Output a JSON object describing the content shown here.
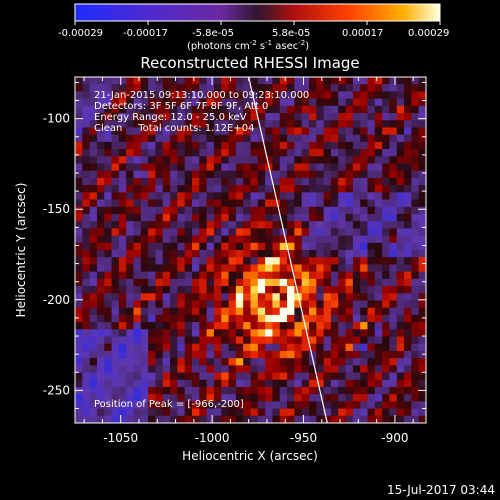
{
  "colorbar": {
    "ticks": [
      "-0.00029",
      "-0.00017",
      "-5.8e-05",
      "5.8e-05",
      "0.00017",
      "0.00029"
    ],
    "unit_label": "(photons cm",
    "unit_exp1": "-2",
    "unit_mid": " s",
    "unit_exp2": "-1",
    "unit_mid2": " asec",
    "unit_exp3": "-2",
    "unit_end": ")"
  },
  "info": {
    "line1": "21-Jan-2015 09:13:10.000 to 09:23:10.000",
    "line2": "Detectors: 3F 5F 6F 7F 8F 9F, Att 0",
    "line3": "Energy Range: 12.0 - 25.0 keV",
    "line4": "Clean     Total counts: 1.12E+04",
    "peak": "Position of Peak = [-966,-200]"
  },
  "footer": {
    "timestamp": "15-Jul-2017 03:44"
  },
  "colors": {
    "background": "#000000",
    "foreground": "#ffffff",
    "limb": "#ffffff"
  },
  "chart_data": {
    "type": "heatmap",
    "title": "Reconstructed RHESSI Image",
    "xlabel": "Heliocentric X (arcsec)",
    "ylabel": "Heliocentric Y (arcsec)",
    "xlim": [
      -1075,
      -883
    ],
    "ylim": [
      -268,
      -77
    ],
    "xticks": [
      -1050,
      -1000,
      -950,
      -900
    ],
    "xtick_labels": [
      "-1050",
      "-1000",
      "-950",
      "-900"
    ],
    "yticks": [
      -250,
      -200,
      -150,
      -100
    ],
    "ytick_labels": [
      "-250",
      "-200",
      "-150",
      "-100"
    ],
    "colorscale_range": [
      -0.00029,
      0.00029
    ],
    "peak": {
      "x": -966,
      "y": -200
    },
    "limb_line": [
      {
        "x": -980,
        "y": -77
      },
      {
        "x": -937,
        "y": -268
      }
    ],
    "grid": false,
    "legend": "none"
  }
}
